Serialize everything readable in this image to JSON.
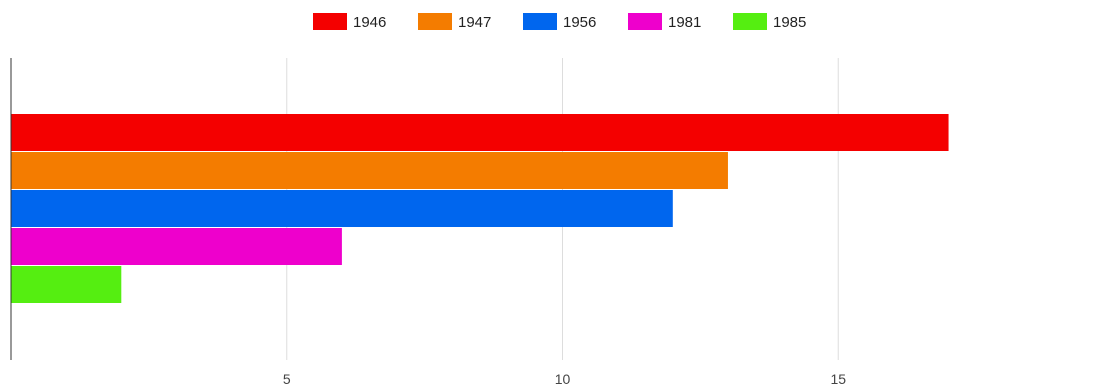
{
  "chart_data": {
    "type": "bar",
    "orientation": "horizontal",
    "categories": [
      ""
    ],
    "series": [
      {
        "name": "1946",
        "values": [
          17
        ],
        "color": "#f40000"
      },
      {
        "name": "1947",
        "values": [
          13
        ],
        "color": "#f47c00"
      },
      {
        "name": "1956",
        "values": [
          12
        ],
        "color": "#0066ee"
      },
      {
        "name": "1981",
        "values": [
          6
        ],
        "color": "#ee00cc"
      },
      {
        "name": "1985",
        "values": [
          2
        ],
        "color": "#55ee11"
      }
    ],
    "xlim": [
      0,
      20
    ],
    "xticks": [
      "5",
      "10",
      "15"
    ],
    "grid": true,
    "legend_position": "top"
  }
}
